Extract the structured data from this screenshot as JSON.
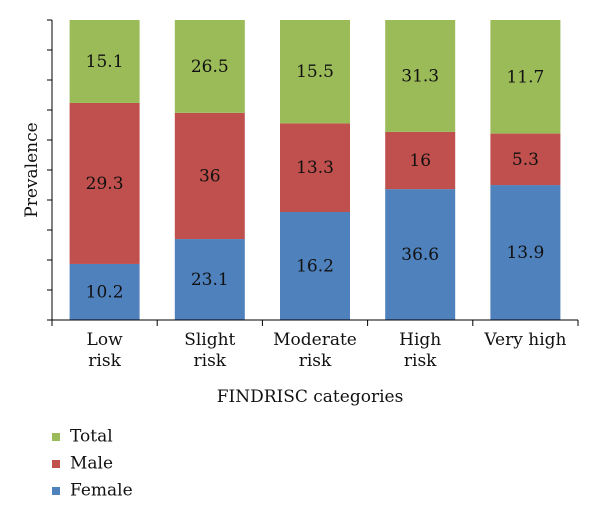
{
  "chart_data": {
    "type": "bar",
    "stacked": true,
    "categories": [
      [
        "Low",
        "risk"
      ],
      [
        "Slight",
        "risk"
      ],
      [
        "Moderate",
        "risk"
      ],
      [
        "High",
        "risk"
      ],
      [
        "Very high"
      ]
    ],
    "series": [
      {
        "name": "Female",
        "color": "#4f81bd",
        "values": [
          10.2,
          23.1,
          16.2,
          36.6,
          13.9
        ]
      },
      {
        "name": "Male",
        "color": "#c0504d",
        "values": [
          29.3,
          36,
          13.3,
          16,
          5.3
        ]
      },
      {
        "name": "Total",
        "color": "#9bbb59",
        "values": [
          15.1,
          26.5,
          15.5,
          31.3,
          11.7
        ]
      }
    ],
    "legend_order": [
      "Total",
      "Male",
      "Female"
    ],
    "xlabel": "FINDRISC categories",
    "ylabel": "Prevalence",
    "y_unit": "percent of column",
    "ylim": [
      0,
      100
    ],
    "y_tick_count": 10,
    "grid": false,
    "legend_position": "bottom-left"
  }
}
